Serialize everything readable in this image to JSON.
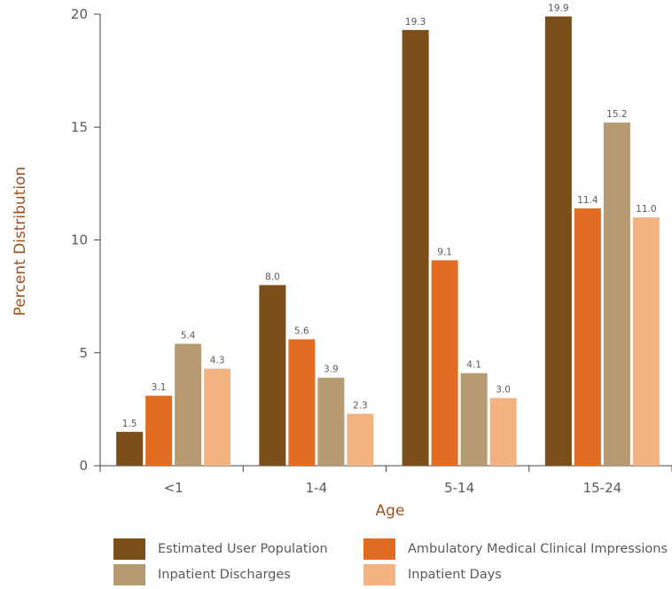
{
  "chart_data": {
    "type": "bar",
    "categories": [
      "<1",
      "1-4",
      "5-14",
      "15-24"
    ],
    "series": [
      {
        "name": "Estimated User Population",
        "color": "#7b4f19",
        "values": [
          1.5,
          8.0,
          19.3,
          19.9
        ],
        "labels": [
          "1.5",
          "8.0",
          "19.3",
          "19.9"
        ]
      },
      {
        "name": "Ambulatory Medical Clinical Impressions",
        "color": "#e26d22",
        "values": [
          3.1,
          5.6,
          9.1,
          11.4
        ],
        "labels": [
          "3.1",
          "5.6",
          "9.1",
          "11.4"
        ]
      },
      {
        "name": "Inpatient Discharges",
        "color": "#b59a72",
        "values": [
          5.4,
          3.9,
          4.1,
          15.2
        ],
        "labels": [
          "5.4",
          "3.9",
          "4.1",
          "15.2"
        ]
      },
      {
        "name": "Inpatient Days",
        "color": "#f3b282",
        "values": [
          4.3,
          2.3,
          3.0,
          11.0
        ],
        "labels": [
          "4.3",
          "2.3",
          "3.0",
          "11.0"
        ]
      }
    ],
    "xlabel": "Age",
    "ylabel": "Percent Distribution",
    "ylim": [
      0,
      20
    ],
    "yticks": [
      "0",
      "5",
      "10",
      "15",
      "20"
    ],
    "grid": false,
    "legend_position": "bottom"
  }
}
